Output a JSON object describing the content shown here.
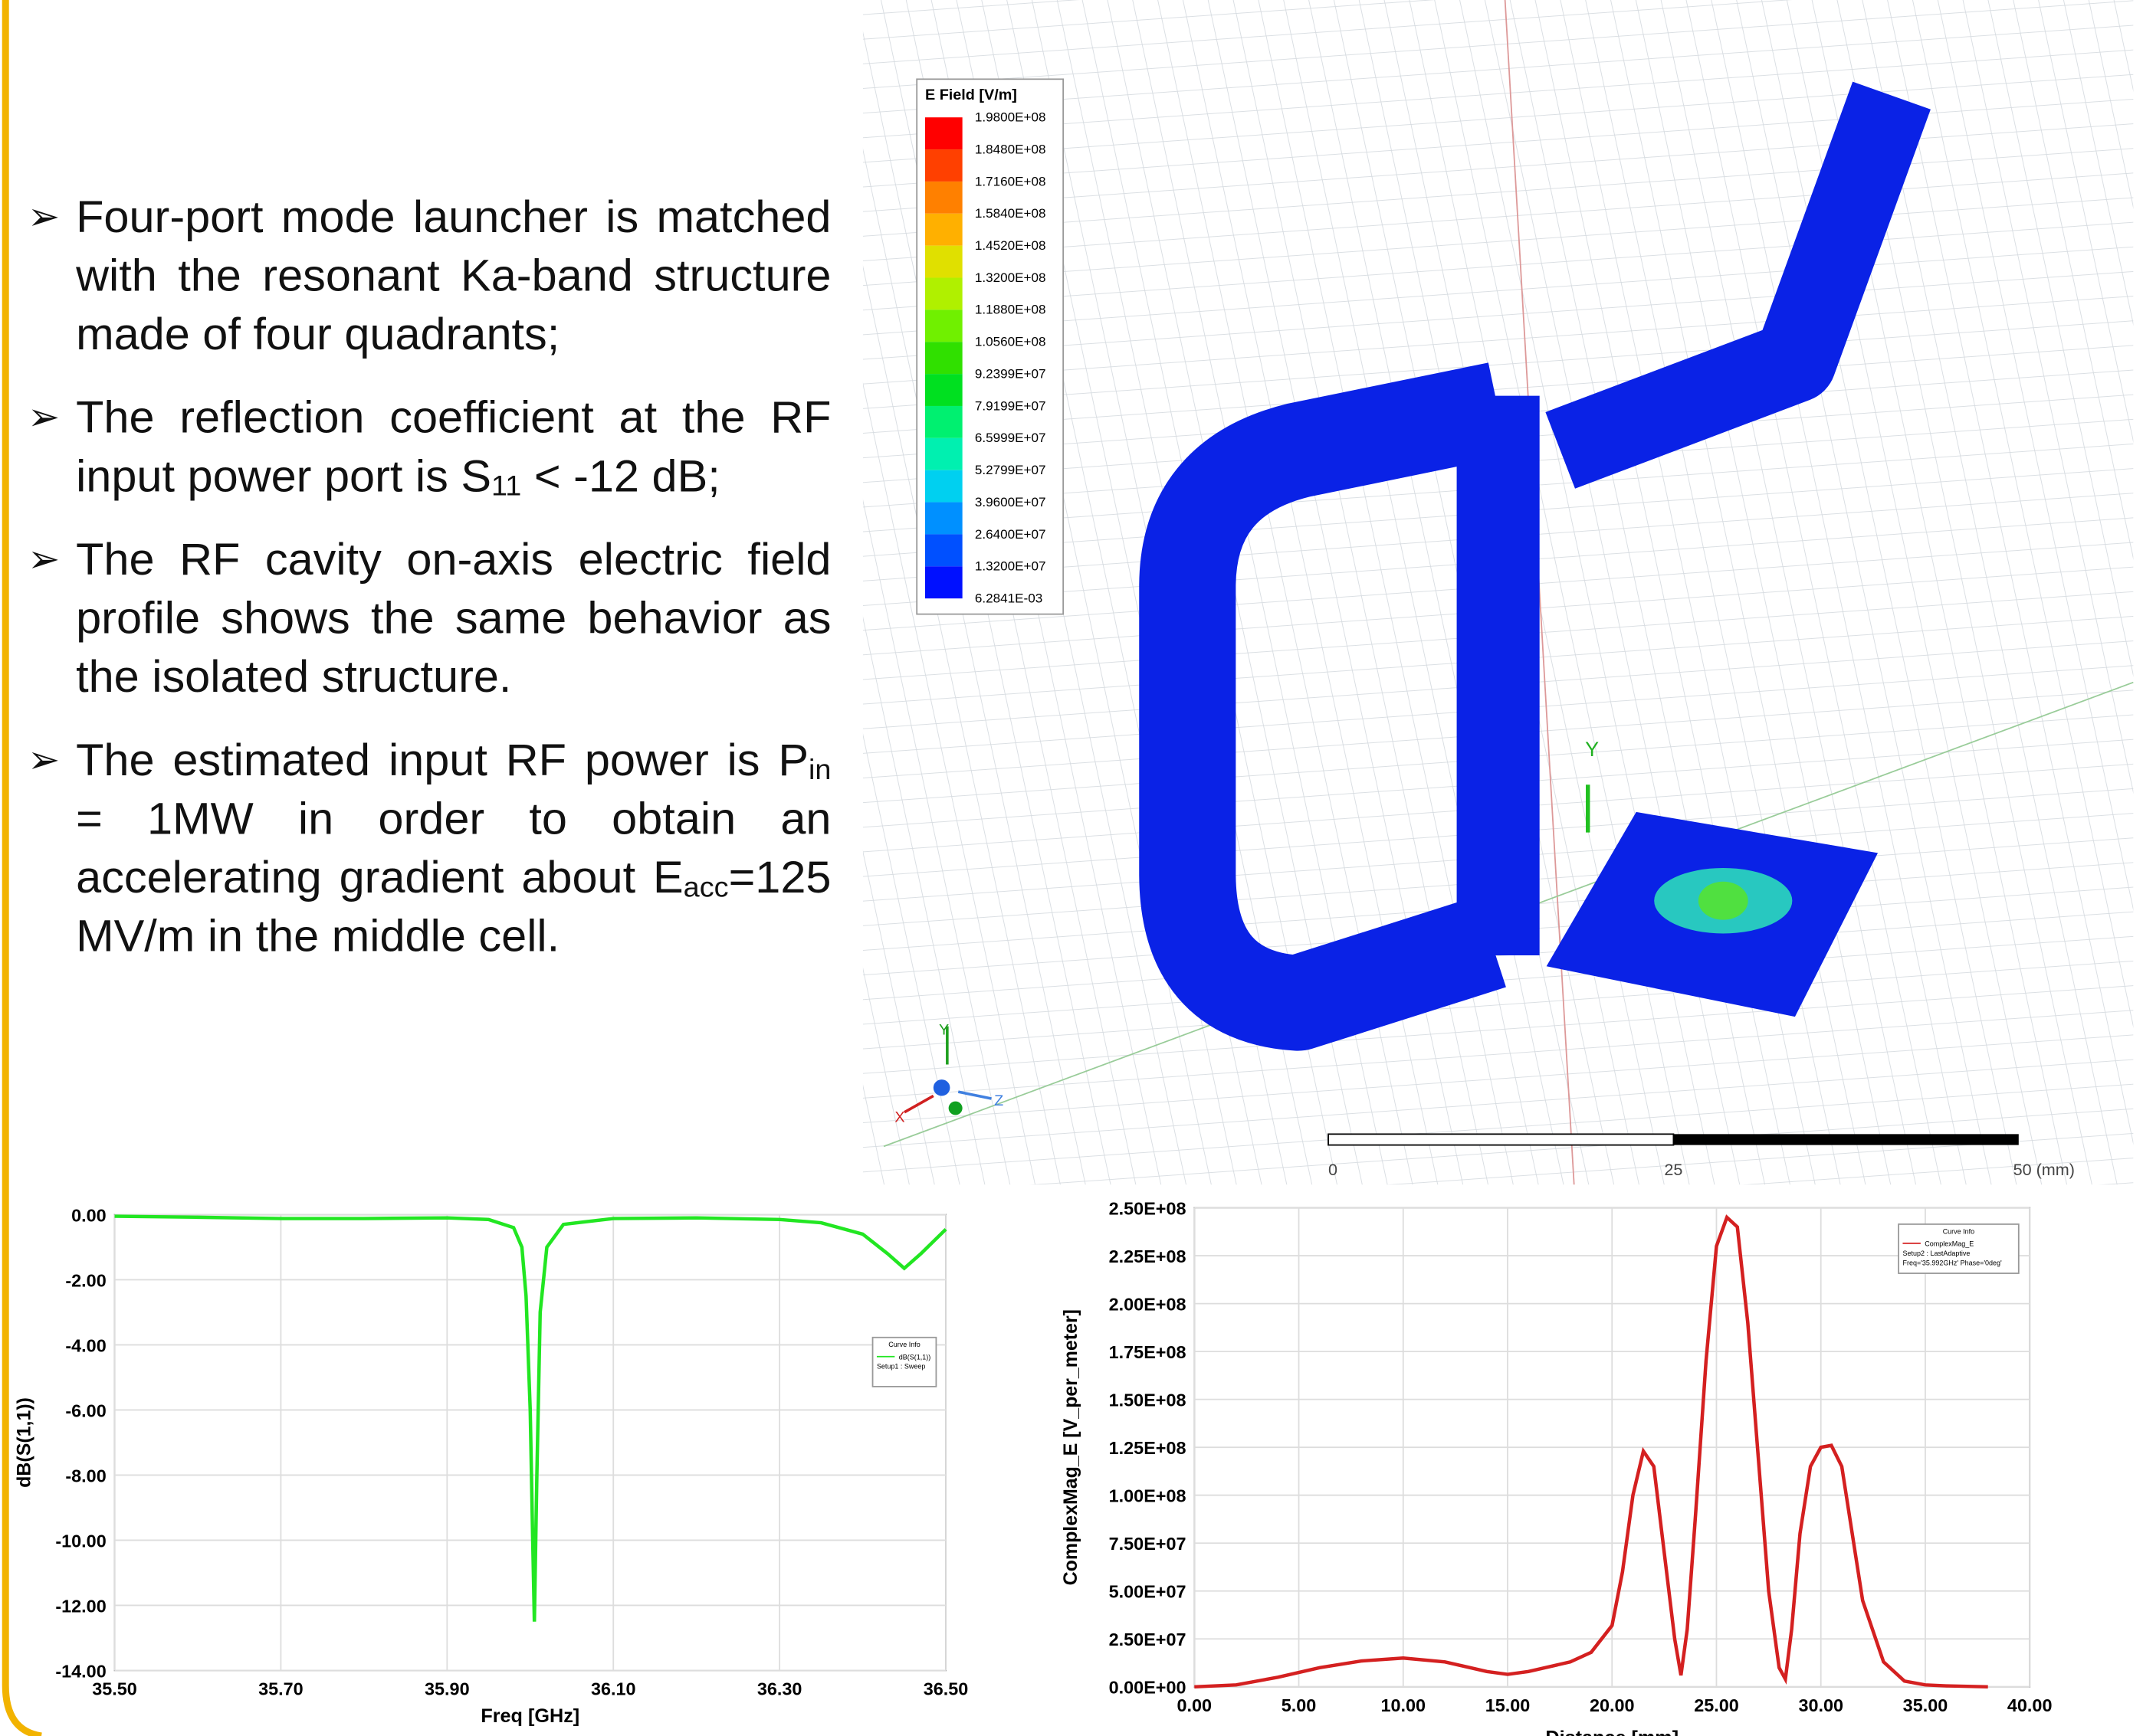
{
  "bullets": [
    [
      "Four-port mode launcher is matched with the resonant Ka-band structure made of four quadrants;"
    ],
    [
      "The reflection coefficient at the RF input power port is S",
      "11",
      " < -12 dB;"
    ],
    [
      "The RF cavity on-axis electric field profile shows the same behavior as the isolated structure."
    ],
    [
      "The estimated input RF power is P",
      "in",
      " = 1MW in order to obtain an accelerating gradient about E",
      "acc",
      "=125 MV/m in the middle cell."
    ]
  ],
  "field_plot": {
    "legend_title": "E Field [V/m]",
    "legend_labels": [
      "1.9800E+08",
      "1.8480E+08",
      "1.7160E+08",
      "1.5840E+08",
      "1.4520E+08",
      "1.3200E+08",
      "1.1880E+08",
      "1.0560E+08",
      "9.2399E+07",
      "7.9199E+07",
      "6.5999E+07",
      "5.2799E+07",
      "3.9600E+07",
      "2.6400E+07",
      "1.3200E+07",
      "6.2841E-03"
    ],
    "legend_colors": [
      "#ff0000",
      "#ff4000",
      "#ff8000",
      "#ffb000",
      "#e0e000",
      "#b0f000",
      "#70f000",
      "#30e000",
      "#00e020",
      "#00f070",
      "#00f0b0",
      "#00d0f0",
      "#0090ff",
      "#0050ff",
      "#0010ff"
    ],
    "axis_label_y": "Y",
    "triad_labels": [
      "Y",
      "X",
      "Z"
    ],
    "scale_labels": [
      "0",
      "25",
      "50 (mm)"
    ]
  },
  "chart_data": [
    {
      "type": "line",
      "x_label": "Freq [GHz]",
      "y_label": "dB(S(1,1))",
      "xlim": [
        35.5,
        36.5
      ],
      "ylim": [
        -14,
        0
      ],
      "xticks": [
        {
          "value": 35.5,
          "label": "35.50"
        },
        {
          "value": 35.7,
          "label": "35.70"
        },
        {
          "value": 35.9,
          "label": "35.90"
        },
        {
          "value": 36.1,
          "label": "36.10"
        },
        {
          "value": 36.3,
          "label": "36.30"
        },
        {
          "value": 36.5,
          "label": "36.50"
        }
      ],
      "yticks": [
        {
          "value": 0,
          "label": "0.00"
        },
        {
          "value": -2,
          "label": "-2.00"
        },
        {
          "value": -4,
          "label": "-4.00"
        },
        {
          "value": -6,
          "label": "-6.00"
        },
        {
          "value": -8,
          "label": "-8.00"
        },
        {
          "value": -10,
          "label": "-10.00"
        },
        {
          "value": -12,
          "label": "-12.00"
        },
        {
          "value": -14,
          "label": "-14.00"
        }
      ],
      "grid": true,
      "legend_title": "Curve Info",
      "legend_note": [
        "Setup1 : Sweep"
      ],
      "x": [
        35.5,
        35.6,
        35.7,
        35.8,
        35.9,
        35.95,
        35.98,
        35.99,
        35.995,
        36.0,
        36.003,
        36.005,
        36.008,
        36.012,
        36.02,
        36.04,
        36.1,
        36.2,
        36.3,
        36.35,
        36.4,
        36.43,
        36.45,
        36.47,
        36.5
      ],
      "series": [
        {
          "name": "dB(S(1,1))",
          "color": "#22e622",
          "values": [
            -0.05,
            -0.08,
            -0.12,
            -0.12,
            -0.1,
            -0.15,
            -0.4,
            -1.0,
            -2.5,
            -6,
            -10,
            -12.5,
            -8,
            -3,
            -1,
            -0.3,
            -0.12,
            -0.1,
            -0.15,
            -0.25,
            -0.6,
            -1.2,
            -1.65,
            -1.2,
            -0.45
          ]
        }
      ]
    },
    {
      "type": "line",
      "x_label": "Distance [mm]",
      "y_label": "ComplexMag_E [V_per_meter]",
      "xlim": [
        0,
        40
      ],
      "ylim": [
        0,
        250000000
      ],
      "xticks": [
        {
          "value": 0,
          "label": "0.00"
        },
        {
          "value": 5,
          "label": "5.00"
        },
        {
          "value": 10,
          "label": "10.00"
        },
        {
          "value": 15,
          "label": "15.00"
        },
        {
          "value": 20,
          "label": "20.00"
        },
        {
          "value": 25,
          "label": "25.00"
        },
        {
          "value": 30,
          "label": "30.00"
        },
        {
          "value": 35,
          "label": "35.00"
        },
        {
          "value": 40,
          "label": "40.00"
        }
      ],
      "yticks": [
        {
          "value": 0,
          "label": "0.00E+00"
        },
        {
          "value": 25000000,
          "label": "2.50E+07"
        },
        {
          "value": 50000000,
          "label": "5.00E+07"
        },
        {
          "value": 75000000,
          "label": "7.50E+07"
        },
        {
          "value": 100000000,
          "label": "1.00E+08"
        },
        {
          "value": 125000000,
          "label": "1.25E+08"
        },
        {
          "value": 150000000,
          "label": "1.50E+08"
        },
        {
          "value": 175000000,
          "label": "1.75E+08"
        },
        {
          "value": 200000000,
          "label": "2.00E+08"
        },
        {
          "value": 225000000,
          "label": "2.25E+08"
        },
        {
          "value": 250000000,
          "label": "2.50E+08"
        }
      ],
      "grid": true,
      "legend_title": "Curve Info",
      "legend_note": [
        "Setup2 : LastAdaptive",
        "Freq='35.992GHz' Phase='0deg'"
      ],
      "x": [
        0,
        2,
        4,
        6,
        8,
        10,
        12,
        14,
        15,
        16,
        18,
        19,
        20,
        20.5,
        21,
        21.5,
        22,
        22.5,
        23,
        23.3,
        23.6,
        24,
        24.5,
        25,
        25.5,
        26,
        26.5,
        27,
        27.5,
        28,
        28.3,
        28.6,
        29,
        29.5,
        30,
        30.5,
        31,
        31.5,
        32,
        33,
        34,
        35,
        36,
        38
      ],
      "series": [
        {
          "name": "ComplexMag_E",
          "color": "#d42020",
          "values": [
            0,
            1000000.0,
            5000000.0,
            10000000.0,
            13500000.0,
            15000000.0,
            13000000.0,
            8000000.0,
            6500000.0,
            8000000.0,
            13000000.0,
            18000000.0,
            32000000.0,
            60000000.0,
            100000000.0,
            123000000.0,
            115000000.0,
            70000000.0,
            25000000.0,
            6000000.0,
            30000000.0,
            90000000.0,
            170000000.0,
            230000000.0,
            245000000.0,
            240000000.0,
            190000000.0,
            120000000.0,
            50000000.0,
            10000000.0,
            4000000.0,
            30000000.0,
            80000000.0,
            115000000.0,
            125000000.0,
            126000000.0,
            115000000.0,
            80000000.0,
            45000000.0,
            13000000.0,
            3000000.0,
            1000000.0,
            500000.0,
            0
          ]
        }
      ]
    }
  ]
}
